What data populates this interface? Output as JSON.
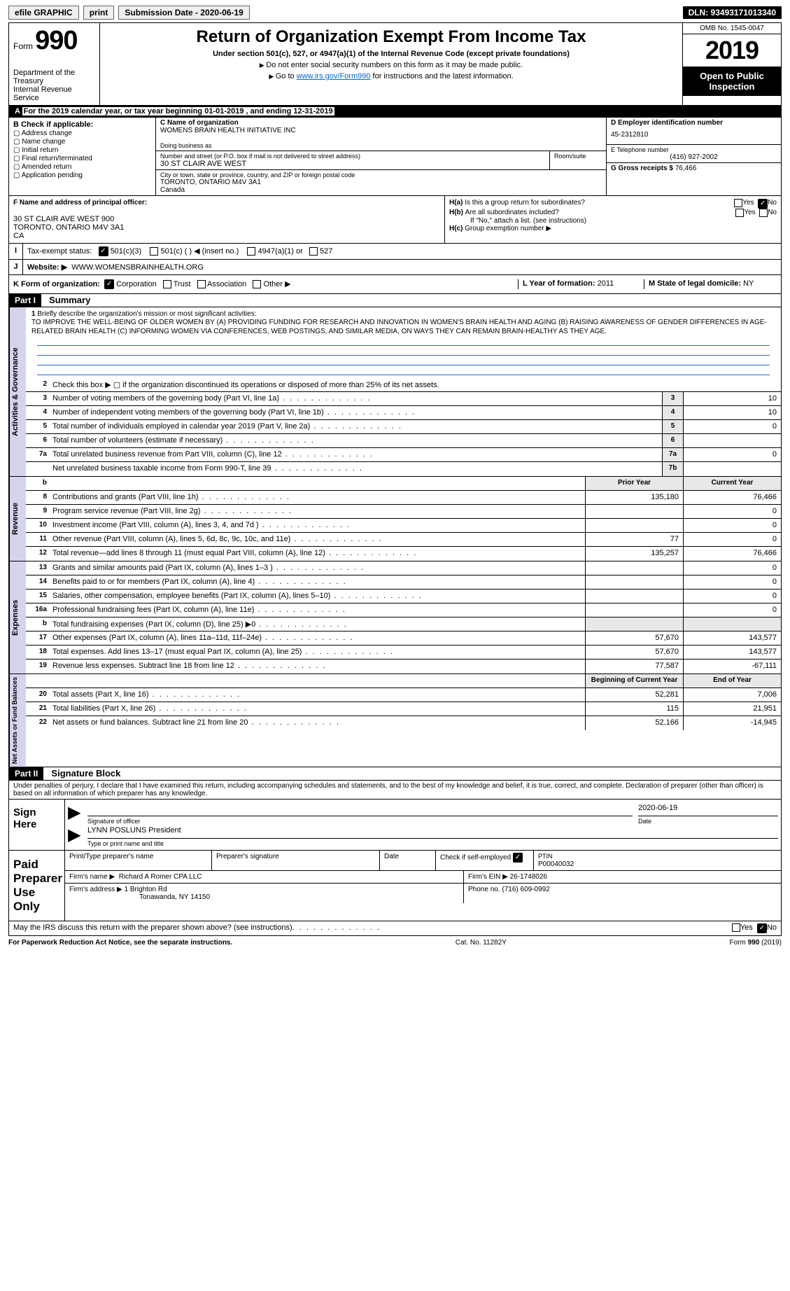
{
  "topbar": {
    "efile": "efile GRAPHIC",
    "print": "print",
    "submission": "Submission Date - 2020-06-19",
    "dln": "DLN: 93493171013340"
  },
  "header": {
    "form_label": "Form",
    "form_num": "990",
    "dept": "Department of the Treasury\nInternal Revenue Service",
    "title": "Return of Organization Exempt From Income Tax",
    "subtitle": "Under section 501(c), 527, or 4947(a)(1) of the Internal Revenue Code (except private foundations)",
    "note1": "Do not enter social security numbers on this form as it may be made public.",
    "note2_pre": "Go to ",
    "note2_link": "www.irs.gov/Form990",
    "note2_post": " for instructions and the latest information.",
    "omb": "OMB No. 1545-0047",
    "year": "2019",
    "open": "Open to Public Inspection"
  },
  "period": "For the 2019 calendar year, or tax year beginning 01-01-2019   , and ending 12-31-2019",
  "box_b": {
    "header": "B Check if applicable:",
    "items": [
      "Address change",
      "Name change",
      "Initial return",
      "Final return/terminated",
      "Amended return",
      "Application pending"
    ]
  },
  "box_c": {
    "label": "C Name of organization",
    "name": "WOMENS BRAIN HEALTH INITIATIVE INC",
    "dba_label": "Doing business as",
    "street_label": "Number and street (or P.O. box if mail is not delivered to street address)",
    "street": "30 ST CLAIR AVE WEST",
    "room_label": "Room/suite",
    "city_label": "City or town, state or province, country, and ZIP or foreign postal code",
    "city": "TORONTO, ONTARIO  M4V 3A1\nCanada"
  },
  "box_d": {
    "label": "D Employer identification number",
    "val": "45-2312810"
  },
  "box_e": {
    "label": "E Telephone number",
    "val": "(416) 927-2002"
  },
  "box_g": {
    "label": "G Gross receipts $",
    "val": "76,466"
  },
  "box_f": {
    "label": "F Name and address of principal officer:",
    "addr1": "30 ST CLAIR AVE WEST 900",
    "addr2": "TORONTO, ONTARIO  M4V 3A1",
    "addr3": "CA"
  },
  "box_h": {
    "a": "Is this a group return for subordinates?",
    "b": "Are all subordinates included?",
    "note": "If \"No,\" attach a list. (see instructions)",
    "c": "Group exemption number ▶"
  },
  "tax_status": {
    "label": "Tax-exempt status:",
    "501c3": "501(c)(3)",
    "501c": "501(c) (   ) ◀ (insert no.)",
    "4947": "4947(a)(1) or",
    "527": "527"
  },
  "website": {
    "label": "Website: ▶",
    "val": "WWW.WOMENSBRAINHEALTH.ORG"
  },
  "box_k": {
    "label": "K Form of organization:",
    "opts": [
      "Corporation",
      "Trust",
      "Association",
      "Other ▶"
    ]
  },
  "box_l": {
    "label": "L Year of formation:",
    "val": "2011"
  },
  "box_m": {
    "label": "M State of legal domicile:",
    "val": "NY"
  },
  "part1": {
    "header": "Part I",
    "title": "Summary",
    "line1_label": "Briefly describe the organization's mission or most significant activities:",
    "mission": "TO IMPROVE THE WELL-BEING OF OLDER WOMEN BY (A) PROVIDING FUNDING FOR RESEARCH AND INNOVATION IN WOMEN'S BRAIN HEALTH AND AGING (B) RAISING AWARENESS OF GENDER DIFFERENCES IN AGE-RELATED BRAIN HEALTH (C) INFORMING WOMEN VIA CONFERENCES, WEB POSTINGS, AND SIMILAR MEDIA, ON WAYS THEY CAN REMAIN BRAIN-HEALTHY AS THEY AGE.",
    "lines": [
      {
        "n": "2",
        "t": "Check this box ▶ ▢  if the organization discontinued its operations or disposed of more than 25% of its net assets."
      },
      {
        "n": "3",
        "t": "Number of voting members of the governing body (Part VI, line 1a)",
        "box": "3",
        "v": "10"
      },
      {
        "n": "4",
        "t": "Number of independent voting members of the governing body (Part VI, line 1b)",
        "box": "4",
        "v": "10"
      },
      {
        "n": "5",
        "t": "Total number of individuals employed in calendar year 2019 (Part V, line 2a)",
        "box": "5",
        "v": "0"
      },
      {
        "n": "6",
        "t": "Total number of volunteers (estimate if necessary)",
        "box": "6",
        "v": ""
      },
      {
        "n": "7a",
        "t": "Total unrelated business revenue from Part VIII, column (C), line 12",
        "box": "7a",
        "v": "0"
      },
      {
        "n": "",
        "t": "Net unrelated business taxable income from Form 990-T, line 39",
        "box": "7b",
        "v": ""
      }
    ],
    "col_prior": "Prior Year",
    "col_current": "Current Year",
    "revenue": [
      {
        "n": "8",
        "t": "Contributions and grants (Part VIII, line 1h)",
        "p": "135,180",
        "c": "76,466"
      },
      {
        "n": "9",
        "t": "Program service revenue (Part VIII, line 2g)",
        "p": "",
        "c": "0"
      },
      {
        "n": "10",
        "t": "Investment income (Part VIII, column (A), lines 3, 4, and 7d )",
        "p": "",
        "c": "0"
      },
      {
        "n": "11",
        "t": "Other revenue (Part VIII, column (A), lines 5, 6d, 8c, 9c, 10c, and 11e)",
        "p": "77",
        "c": "0"
      },
      {
        "n": "12",
        "t": "Total revenue—add lines 8 through 11 (must equal Part VIII, column (A), line 12)",
        "p": "135,257",
        "c": "76,466"
      }
    ],
    "expenses": [
      {
        "n": "13",
        "t": "Grants and similar amounts paid (Part IX, column (A), lines 1–3 )",
        "p": "",
        "c": "0"
      },
      {
        "n": "14",
        "t": "Benefits paid to or for members (Part IX, column (A), line 4)",
        "p": "",
        "c": "0"
      },
      {
        "n": "15",
        "t": "Salaries, other compensation, employee benefits (Part IX, column (A), lines 5–10)",
        "p": "",
        "c": "0"
      },
      {
        "n": "16a",
        "t": "Professional fundraising fees (Part IX, column (A), line 11e)",
        "p": "",
        "c": "0"
      },
      {
        "n": "b",
        "t": "Total fundraising expenses (Part IX, column (D), line 25) ▶0",
        "p": "",
        "c": "",
        "grey": true
      },
      {
        "n": "17",
        "t": "Other expenses (Part IX, column (A), lines 11a–11d, 11f–24e)",
        "p": "57,670",
        "c": "143,577"
      },
      {
        "n": "18",
        "t": "Total expenses. Add lines 13–17 (must equal Part IX, column (A), line 25)",
        "p": "57,670",
        "c": "143,577"
      },
      {
        "n": "19",
        "t": "Revenue less expenses. Subtract line 18 from line 12",
        "p": "77,587",
        "c": "-67,111"
      }
    ],
    "col_begin": "Beginning of Current Year",
    "col_end": "End of Year",
    "netassets": [
      {
        "n": "20",
        "t": "Total assets (Part X, line 16)",
        "p": "52,281",
        "c": "7,006"
      },
      {
        "n": "21",
        "t": "Total liabilities (Part X, line 26)",
        "p": "115",
        "c": "21,951"
      },
      {
        "n": "22",
        "t": "Net assets or fund balances. Subtract line 21 from line 20",
        "p": "52,166",
        "c": "-14,945"
      }
    ]
  },
  "part2": {
    "header": "Part II",
    "title": "Signature Block",
    "decl": "Under penalties of perjury, I declare that I have examined this return, including accompanying schedules and statements, and to the best of my knowledge and belief, it is true, correct, and complete. Declaration of preparer (other than officer) is based on all information of which preparer has any knowledge.",
    "sign_here": "Sign Here",
    "sig_officer": "Signature of officer",
    "sig_date": "Date",
    "date_val": "2020-06-19",
    "officer_name": "LYNN POSLUNS President",
    "type_label": "Type or print name and title",
    "paid": "Paid Preparer Use Only",
    "prep_name_label": "Print/Type preparer's name",
    "prep_sig_label": "Preparer's signature",
    "prep_date_label": "Date",
    "self_emp": "Check         if self-employed",
    "ptin_label": "PTIN",
    "ptin": "P00040032",
    "firm_name_label": "Firm's name    ▶",
    "firm_name": "Richard A Romer CPA LLC",
    "firm_ein_label": "Firm's EIN ▶",
    "firm_ein": "26-1748026",
    "firm_addr_label": "Firm's address ▶",
    "firm_addr": "1 Brighton Rd",
    "firm_city": "Tonawanda, NY  14150",
    "phone_label": "Phone no.",
    "phone": "(716) 609-0992",
    "discuss": "May the IRS discuss this return with the preparer shown above? (see instructions)"
  },
  "footer": {
    "left": "For Paperwork Reduction Act Notice, see the separate instructions.",
    "mid": "Cat. No. 11282Y",
    "right_pre": "Form ",
    "right_num": "990",
    "right_post": " (2019)"
  },
  "vtabs": {
    "gov": "Activities & Governance",
    "rev": "Revenue",
    "exp": "Expenses",
    "net": "Net Assets or Fund Balances"
  },
  "yes": "Yes",
  "no": "No"
}
